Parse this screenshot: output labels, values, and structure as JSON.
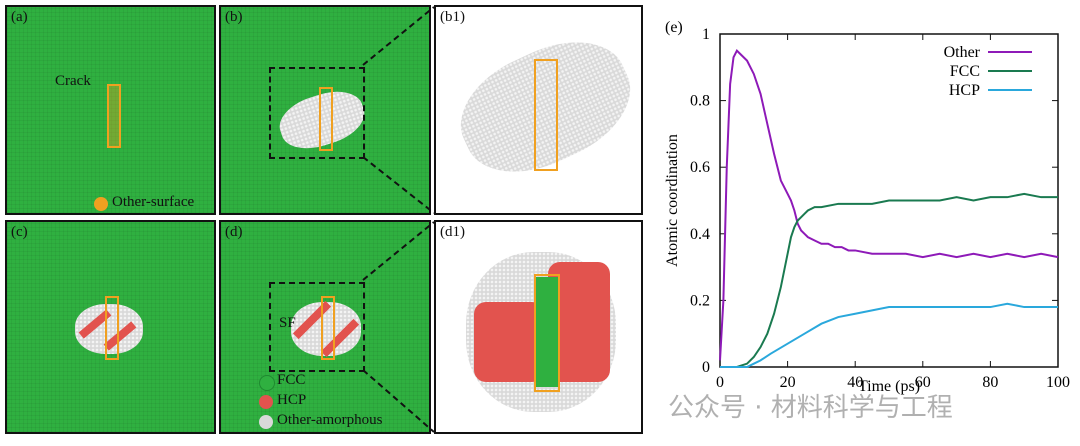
{
  "panels": {
    "a": {
      "label": "(a)",
      "crack": "Crack",
      "legend": "Other-surface"
    },
    "b": {
      "label": "(b)"
    },
    "b1": {
      "label": "(b1)"
    },
    "c": {
      "label": "(c)"
    },
    "d": {
      "label": "(d)",
      "sf": "SF",
      "legend": [
        "FCC",
        "HCP",
        "Other-amorphous"
      ]
    },
    "d1": {
      "label": "(d1)"
    },
    "e": {
      "label": "(e)"
    }
  },
  "colors": {
    "fcc_atoms": "#2fb040",
    "hcp_atoms": "#e2534e",
    "other_atoms": "#d9d9d9",
    "surface": "#f0a020"
  },
  "watermark": "公众号 · 材料科学与工程",
  "chart_data": {
    "type": "line",
    "xlabel": "Time (ps)",
    "ylabel": "Atomic coordination",
    "xlim": [
      0,
      100
    ],
    "ylim": [
      0,
      1
    ],
    "xticks": [
      0,
      20,
      40,
      60,
      80,
      100
    ],
    "yticks": [
      0,
      0.2,
      0.4,
      0.6,
      0.8,
      1
    ],
    "legend_position": "top-right",
    "series": [
      {
        "name": "Other",
        "color": "#8e1ab8",
        "x": [
          0,
          1,
          2,
          3,
          4,
          5,
          6,
          8,
          10,
          12,
          14,
          16,
          18,
          20,
          21,
          22,
          23,
          24,
          25,
          26,
          28,
          30,
          32,
          34,
          36,
          38,
          40,
          45,
          50,
          55,
          60,
          65,
          70,
          75,
          80,
          85,
          90,
          95,
          100
        ],
        "y": [
          0.02,
          0.2,
          0.6,
          0.85,
          0.93,
          0.95,
          0.94,
          0.92,
          0.88,
          0.82,
          0.73,
          0.64,
          0.56,
          0.52,
          0.5,
          0.47,
          0.43,
          0.41,
          0.4,
          0.39,
          0.38,
          0.37,
          0.37,
          0.36,
          0.36,
          0.35,
          0.35,
          0.34,
          0.34,
          0.34,
          0.33,
          0.34,
          0.33,
          0.34,
          0.33,
          0.34,
          0.33,
          0.34,
          0.33
        ]
      },
      {
        "name": "FCC",
        "color": "#1a7a50",
        "x": [
          0,
          5,
          8,
          10,
          12,
          14,
          16,
          18,
          20,
          21,
          22,
          23,
          24,
          25,
          26,
          28,
          30,
          35,
          40,
          45,
          50,
          55,
          60,
          65,
          70,
          75,
          80,
          85,
          90,
          95,
          100
        ],
        "y": [
          0,
          0,
          0.01,
          0.03,
          0.06,
          0.1,
          0.16,
          0.24,
          0.34,
          0.39,
          0.42,
          0.44,
          0.45,
          0.46,
          0.47,
          0.48,
          0.48,
          0.49,
          0.49,
          0.49,
          0.5,
          0.5,
          0.5,
          0.5,
          0.51,
          0.5,
          0.51,
          0.51,
          0.52,
          0.51,
          0.51
        ]
      },
      {
        "name": "HCP",
        "color": "#2aa8dc",
        "x": [
          0,
          8,
          10,
          12,
          15,
          20,
          25,
          30,
          35,
          40,
          45,
          50,
          55,
          60,
          65,
          70,
          75,
          80,
          85,
          90,
          95,
          100
        ],
        "y": [
          0,
          0,
          0.01,
          0.02,
          0.04,
          0.07,
          0.1,
          0.13,
          0.15,
          0.16,
          0.17,
          0.18,
          0.18,
          0.18,
          0.18,
          0.18,
          0.18,
          0.18,
          0.19,
          0.18,
          0.18,
          0.18
        ]
      }
    ]
  }
}
